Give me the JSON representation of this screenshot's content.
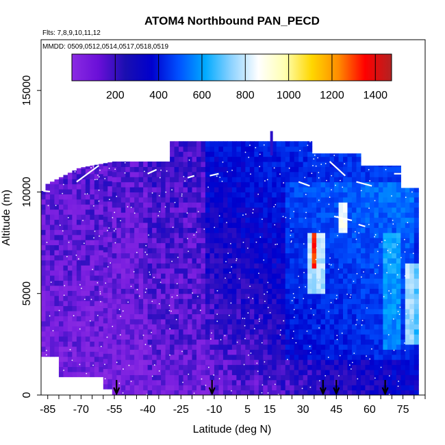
{
  "chart_data": {
    "type": "heatmap",
    "title": "ATOM4 Northbound PAN_PECD",
    "flights_label": "Flts: 7,8,9,10,11,12",
    "dates_label": "MMDD: 0509,0512,0514,0517,0518,0519",
    "xlabel": "Latitude (deg N)",
    "ylabel": "Altitude (m)",
    "xlim": [
      -88,
      85
    ],
    "ylim": [
      0,
      17500
    ],
    "x_ticks": [
      -85,
      -70,
      -55,
      -40,
      -25,
      -10,
      5,
      15,
      30,
      45,
      60,
      75
    ],
    "y_ticks": [
      0,
      5000,
      10000,
      15000
    ],
    "colorbar": {
      "min": 0,
      "max": 1475,
      "ticks": [
        200,
        400,
        600,
        800,
        1000,
        1200,
        1400
      ],
      "colors": [
        "#8a2be2",
        "#6a0fd8",
        "#1a0fb0",
        "#0000cd",
        "#0050ff",
        "#00aaff",
        "#8fd3ff",
        "#ffffff",
        "#ffffb0",
        "#ffd700",
        "#ff8c00",
        "#ff0000",
        "#b22222"
      ]
    },
    "arrow_latitudes": [
      -54,
      -11,
      39,
      45,
      67
    ],
    "grid": false,
    "legend": "colorbar-top"
  }
}
